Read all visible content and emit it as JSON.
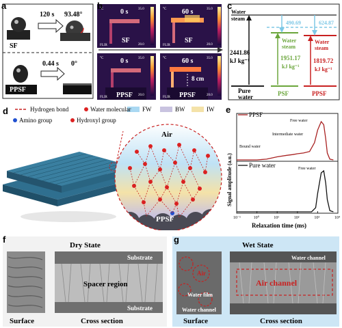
{
  "panel_a": {
    "label": "a",
    "sf_label": "SF",
    "ppsf_label": "PPSF",
    "sf_time": "120 s",
    "sf_angle": "93.48°",
    "ppsf_time": "0.44 s",
    "ppsf_angle": "0°"
  },
  "panel_b": {
    "label": "b",
    "time_start": "0 s",
    "time_end": "60 s",
    "sf_label": "SF",
    "ppsf_label": "PPSF",
    "scale_top": "35.0",
    "scale_bottom": "20.0",
    "unit": "°C",
    "distance": "8 cm",
    "brand": "FLIR"
  },
  "panel_c": {
    "label": "c",
    "water_steam": [
      "Water",
      "steam"
    ],
    "pure_value": [
      "2441.86",
      "kJ kg⁻¹"
    ],
    "pure_label": [
      "Pure",
      "water"
    ],
    "psf_steam": "490.69",
    "psf_value": [
      "Water",
      "steam",
      "1951.17",
      "kJ kg⁻¹"
    ],
    "ppsf_steam": "624.87",
    "ppsf_value": [
      "Water",
      "steam",
      "1819.72",
      "kJ kg⁻¹"
    ],
    "psf_label": "PSF",
    "ppsf_label": "PPSF"
  },
  "panel_d": {
    "label": "d",
    "legend": {
      "hbond": "Hydrogen bond",
      "water": "Water molecular",
      "fw": "FW",
      "bw": "BW",
      "iw": "IW",
      "amino": "Amino group",
      "hydroxyl": "Hydroxyl group"
    },
    "air_label": "Air",
    "ppsf_label": "PPSF",
    "colors": {
      "fw": "#a9d8f2",
      "bw": "#c9c3e0",
      "iw": "#f4e2a8"
    }
  },
  "panel_e": {
    "label": "e",
    "top_series": "PPSF",
    "bottom_series": "Pure water",
    "free_water": "Free water",
    "intermediate_water": "Intermediate water",
    "bound_water": "Bound water",
    "xlabel": "Relaxation time (ms)",
    "ylabel": "Signal amplitude (a.u.)",
    "xticks": [
      "10⁻¹",
      "10⁰",
      "10¹",
      "10²",
      "10³",
      "10⁴"
    ]
  },
  "panel_f": {
    "label": "f",
    "title": "Dry State",
    "substrate_top": "Substrate",
    "spacer": "Spacer region",
    "substrate_bottom": "Substrate",
    "surface": "Surface",
    "cross": "Cross section"
  },
  "panel_g": {
    "label": "g",
    "title": "Wet State",
    "air": "Air",
    "water_film": "Water film",
    "water_channel_top": "Water channel",
    "air_channel": "Air channel",
    "water_channel_bottom": "Water channel",
    "surface": "Surface",
    "cross": "Cross section"
  },
  "chart_data": {
    "type": "line",
    "xlabel": "Relaxation time (ms)",
    "ylabel": "Signal amplitude (a.u.)",
    "xscale": "log",
    "xlim": [
      0.1,
      10000
    ],
    "series": [
      {
        "name": "PPSF",
        "x": [
          0.1,
          1,
          3,
          10,
          30,
          60,
          100,
          200,
          400,
          700,
          1000,
          1500,
          2000,
          2500,
          3000,
          4000,
          6000
        ],
        "y": [
          0.0,
          0.0,
          0.02,
          0.08,
          0.12,
          0.14,
          0.16,
          0.18,
          0.22,
          0.45,
          0.78,
          1.0,
          0.92,
          0.55,
          0.18,
          0.02,
          0.0
        ]
      },
      {
        "name": "Pure water",
        "x": [
          0.1,
          100,
          500,
          800,
          1000,
          1500,
          2000,
          2500,
          3000,
          4000,
          6000
        ],
        "y": [
          0.0,
          0.0,
          0.0,
          0.1,
          0.45,
          0.95,
          1.0,
          0.7,
          0.3,
          0.03,
          0.0
        ]
      }
    ]
  }
}
